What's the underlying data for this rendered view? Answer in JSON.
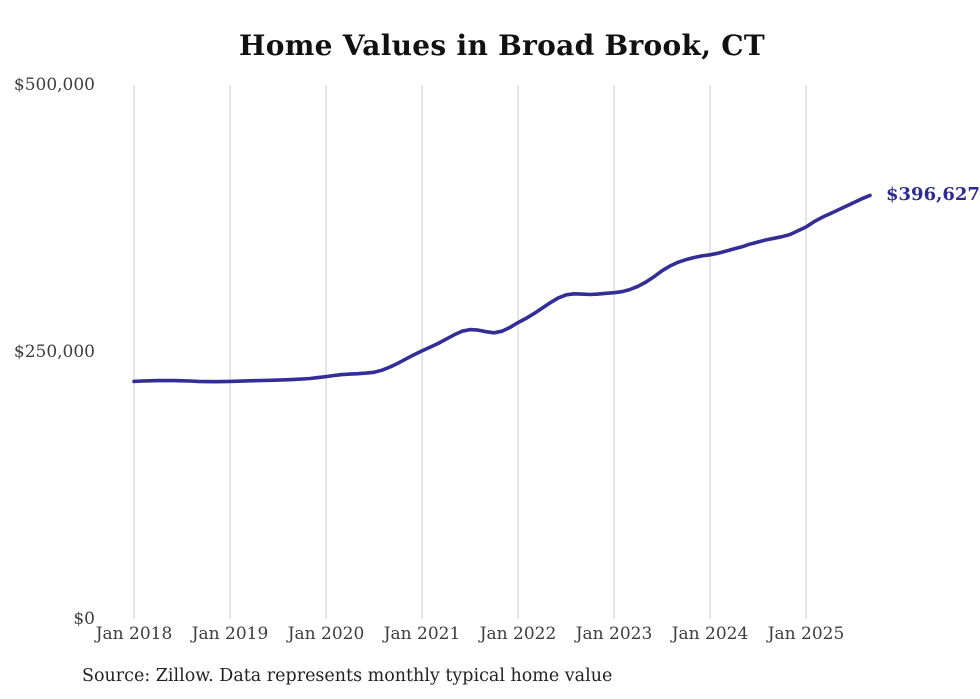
{
  "title": "Home Values in Broad Brook, CT",
  "source_note": "Source: Zillow. Data represents monthly typical home value",
  "end_label": "$396,627",
  "colors": {
    "line": "#322e95",
    "annotation": "#2e2b90",
    "grid": "#cccccc",
    "title_text": "#111111",
    "axis_text": "#3d3d3d",
    "source_text": "#222222",
    "background": "#ffffff"
  },
  "chart_data": {
    "type": "line",
    "title": "Home Values in Broad Brook, CT",
    "xlabel": "",
    "ylabel": "",
    "x_start": "2018-01",
    "x_end": "2025-09",
    "frequency": "monthly",
    "x_tick_labels": [
      "Jan 2018",
      "Jan 2019",
      "Jan 2020",
      "Jan 2021",
      "Jan 2022",
      "Jan 2023",
      "Jan 2024",
      "Jan 2025"
    ],
    "y_ticks": [
      0,
      250000,
      500000
    ],
    "y_tick_labels": [
      "$0",
      "$250,000",
      "$500,000"
    ],
    "ylim": [
      0,
      500000
    ],
    "grid": "vertical-only",
    "legend": "none",
    "last_value": 396627,
    "series": [
      {
        "name": "Typical home value",
        "values": [
          222500,
          222800,
          223000,
          223200,
          223300,
          223200,
          223000,
          222800,
          222500,
          222300,
          222200,
          222300,
          222500,
          222700,
          222900,
          223100,
          223300,
          223500,
          223700,
          224000,
          224300,
          224700,
          225200,
          226000,
          227000,
          228000,
          228800,
          229300,
          229700,
          230200,
          231000,
          233000,
          236000,
          239500,
          243500,
          247500,
          251000,
          254500,
          258000,
          262000,
          266000,
          269500,
          271000,
          270500,
          269000,
          268000,
          269500,
          273000,
          277500,
          281500,
          286000,
          291000,
          296000,
          300500,
          303500,
          304500,
          304200,
          303800,
          304200,
          305000,
          305500,
          306500,
          308500,
          311500,
          315500,
          320500,
          326000,
          330500,
          334000,
          336500,
          338500,
          340000,
          341000,
          342500,
          344500,
          346500,
          348500,
          351000,
          353000,
          355000,
          356500,
          358000,
          360000,
          363500,
          367000,
          372000,
          376000,
          379500,
          383000,
          386500,
          390000,
          393500,
          396627
        ]
      }
    ]
  }
}
